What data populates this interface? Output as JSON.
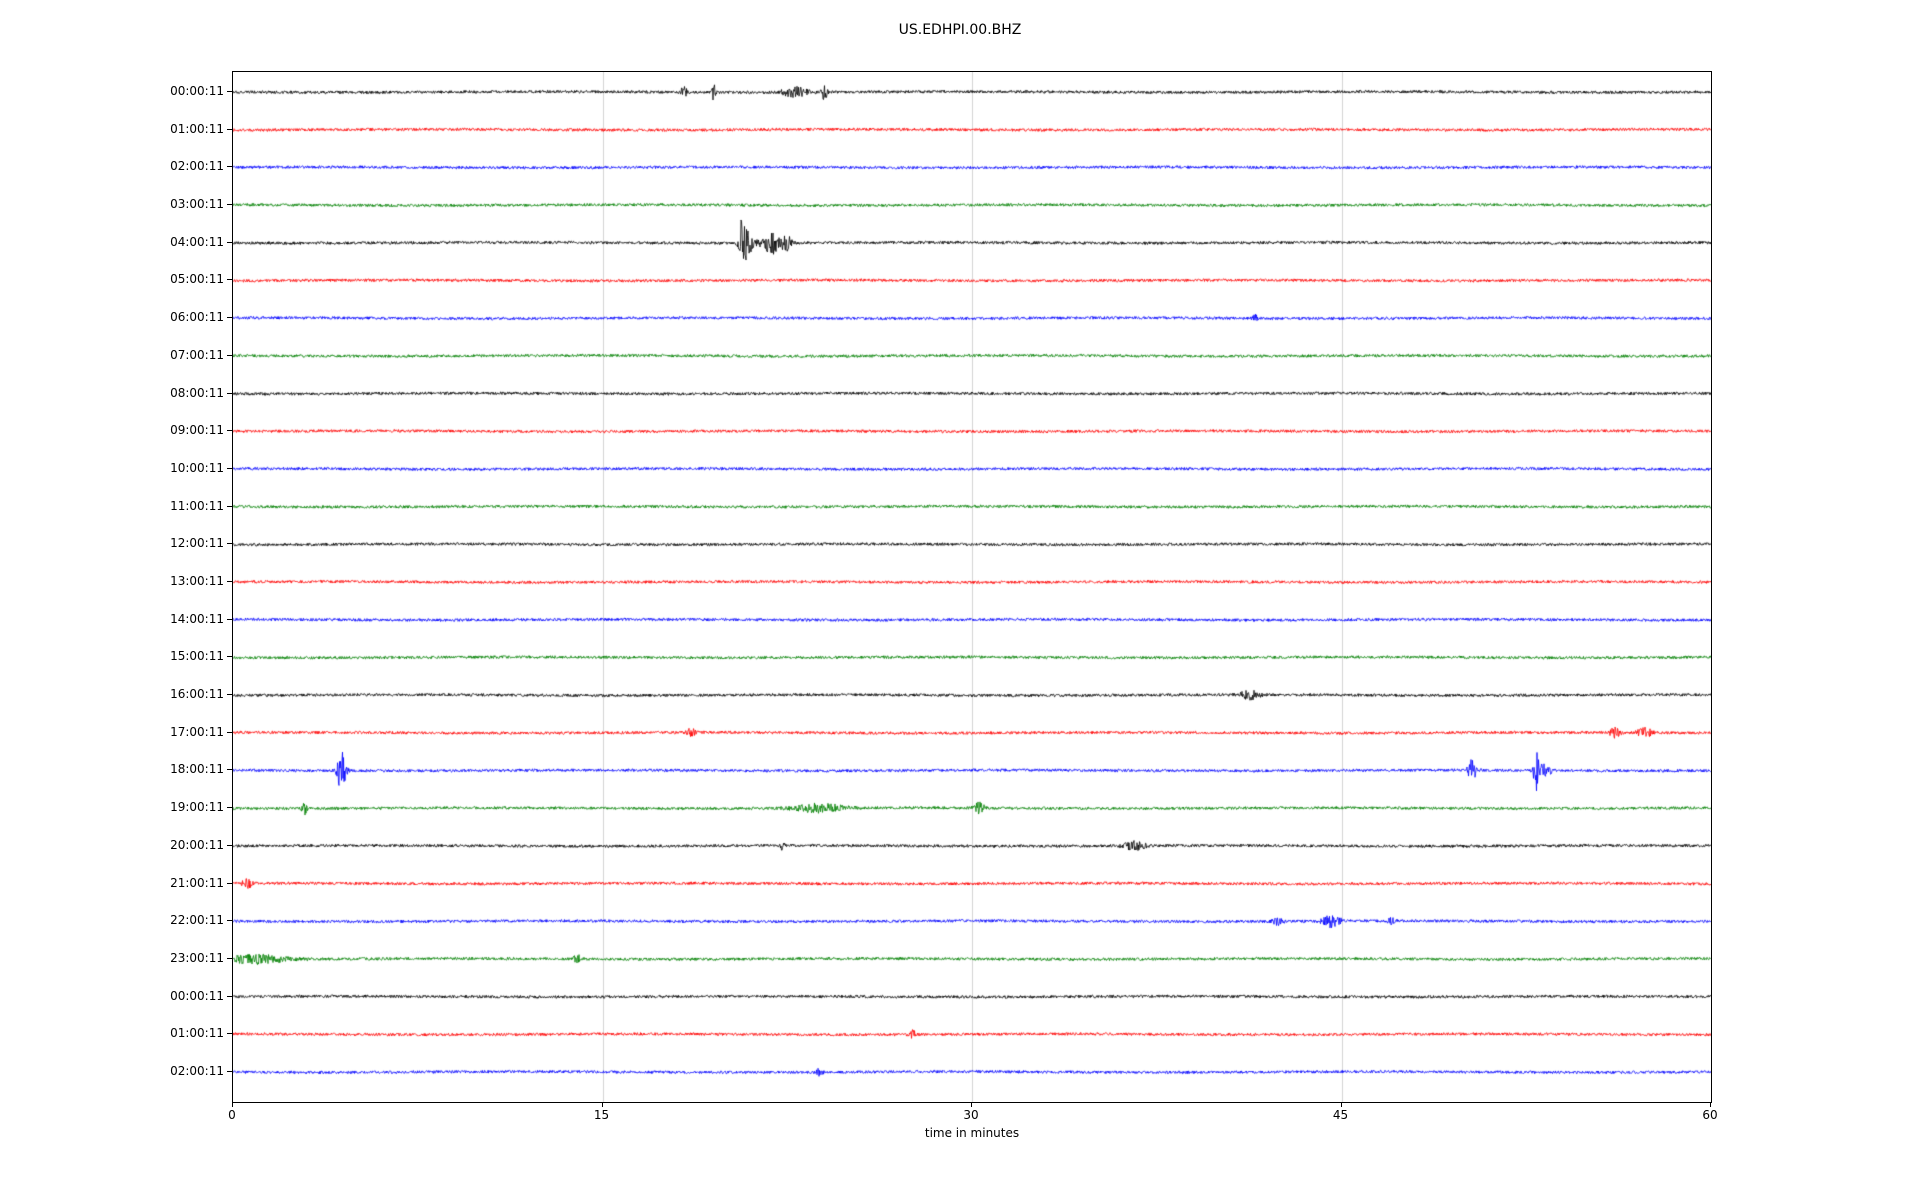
{
  "chart_data": {
    "type": "line",
    "subtype": "seismogram-helicorder",
    "title": "US.EDHPI.00.BHZ",
    "xlabel": "time in minutes",
    "x_range": [
      0,
      60
    ],
    "x_ticks": [
      0,
      15,
      30,
      45,
      60
    ],
    "grid_x": [
      15,
      30,
      45
    ],
    "noise_amplitude": 1.4,
    "colors": {
      "cycle": [
        "#000000",
        "#ff0000",
        "#0000ff",
        "#008000"
      ],
      "grid": "#d3d3d3",
      "frame": "#000000",
      "background": "#ffffff"
    },
    "rows": [
      {
        "label": "00:00:11",
        "color": "#000000",
        "events": [
          {
            "m": 18.3,
            "a": 5,
            "w": 0.1
          },
          {
            "m": 19.5,
            "a": 10,
            "w": 0.05
          },
          {
            "m": 22.8,
            "a": 5,
            "w": 0.35
          },
          {
            "m": 24.0,
            "a": 8,
            "w": 0.08
          }
        ]
      },
      {
        "label": "01:00:11",
        "color": "#ff0000",
        "events": []
      },
      {
        "label": "02:00:11",
        "color": "#0000ff",
        "events": []
      },
      {
        "label": "03:00:11",
        "color": "#008000",
        "events": []
      },
      {
        "label": "04:00:11",
        "color": "#000000",
        "events": [
          {
            "m": 20.7,
            "a": 33,
            "w": 0.1,
            "decay": 0.22
          },
          {
            "m": 21.9,
            "a": 10,
            "w": 0.25
          },
          {
            "m": 22.5,
            "a": 7,
            "w": 0.15
          }
        ]
      },
      {
        "label": "05:00:11",
        "color": "#ff0000",
        "events": []
      },
      {
        "label": "06:00:11",
        "color": "#0000ff",
        "events": [
          {
            "m": 41.5,
            "a": 3,
            "w": 0.08
          }
        ]
      },
      {
        "label": "07:00:11",
        "color": "#008000",
        "events": []
      },
      {
        "label": "08:00:11",
        "color": "#000000",
        "events": []
      },
      {
        "label": "09:00:11",
        "color": "#ff0000",
        "events": []
      },
      {
        "label": "10:00:11",
        "color": "#0000ff",
        "events": []
      },
      {
        "label": "11:00:11",
        "color": "#008000",
        "events": []
      },
      {
        "label": "12:00:11",
        "color": "#000000",
        "events": []
      },
      {
        "label": "13:00:11",
        "color": "#ff0000",
        "events": []
      },
      {
        "label": "14:00:11",
        "color": "#0000ff",
        "events": []
      },
      {
        "label": "15:00:11",
        "color": "#008000",
        "events": []
      },
      {
        "label": "16:00:11",
        "color": "#000000",
        "events": [
          {
            "m": 41.3,
            "a": 5,
            "w": 0.25
          }
        ]
      },
      {
        "label": "17:00:11",
        "color": "#ff0000",
        "events": [
          {
            "m": 18.6,
            "a": 5,
            "w": 0.1
          },
          {
            "m": 56.1,
            "a": 5,
            "w": 0.15
          },
          {
            "m": 57.3,
            "a": 5,
            "w": 0.2
          }
        ]
      },
      {
        "label": "18:00:11",
        "color": "#0000ff",
        "events": [
          {
            "m": 4.4,
            "a": 20,
            "w": 0.12
          },
          {
            "m": 50.3,
            "a": 10,
            "w": 0.12
          },
          {
            "m": 52.9,
            "a": 18,
            "w": 0.07
          },
          {
            "m": 53.2,
            "a": 7,
            "w": 0.2
          }
        ]
      },
      {
        "label": "19:00:11",
        "color": "#008000",
        "events": [
          {
            "m": 2.9,
            "a": 7,
            "w": 0.07
          },
          {
            "m": 23.8,
            "a": 4,
            "w": 0.7
          },
          {
            "m": 30.3,
            "a": 5,
            "w": 0.15
          }
        ]
      },
      {
        "label": "20:00:11",
        "color": "#000000",
        "events": [
          {
            "m": 22.3,
            "a": 5,
            "w": 0.06
          },
          {
            "m": 36.6,
            "a": 4,
            "w": 0.3
          }
        ]
      },
      {
        "label": "21:00:11",
        "color": "#ff0000",
        "events": [
          {
            "m": 0.6,
            "a": 4,
            "w": 0.15
          }
        ]
      },
      {
        "label": "22:00:11",
        "color": "#0000ff",
        "events": [
          {
            "m": 42.4,
            "a": 3,
            "w": 0.15
          },
          {
            "m": 44.6,
            "a": 6,
            "w": 0.25
          },
          {
            "m": 47.0,
            "a": 3,
            "w": 0.1
          }
        ]
      },
      {
        "label": "23:00:11",
        "color": "#008000",
        "events": [
          {
            "m": 0.9,
            "a": 4,
            "w": 0.9
          },
          {
            "m": 14.0,
            "a": 4,
            "w": 0.12
          }
        ]
      },
      {
        "label": "00:00:11",
        "color": "#000000",
        "events": []
      },
      {
        "label": "01:00:11",
        "color": "#ff0000",
        "events": [
          {
            "m": 27.6,
            "a": 4,
            "w": 0.1
          }
        ]
      },
      {
        "label": "02:00:11",
        "color": "#0000ff",
        "events": [
          {
            "m": 23.8,
            "a": 3,
            "w": 0.1
          }
        ]
      }
    ]
  }
}
